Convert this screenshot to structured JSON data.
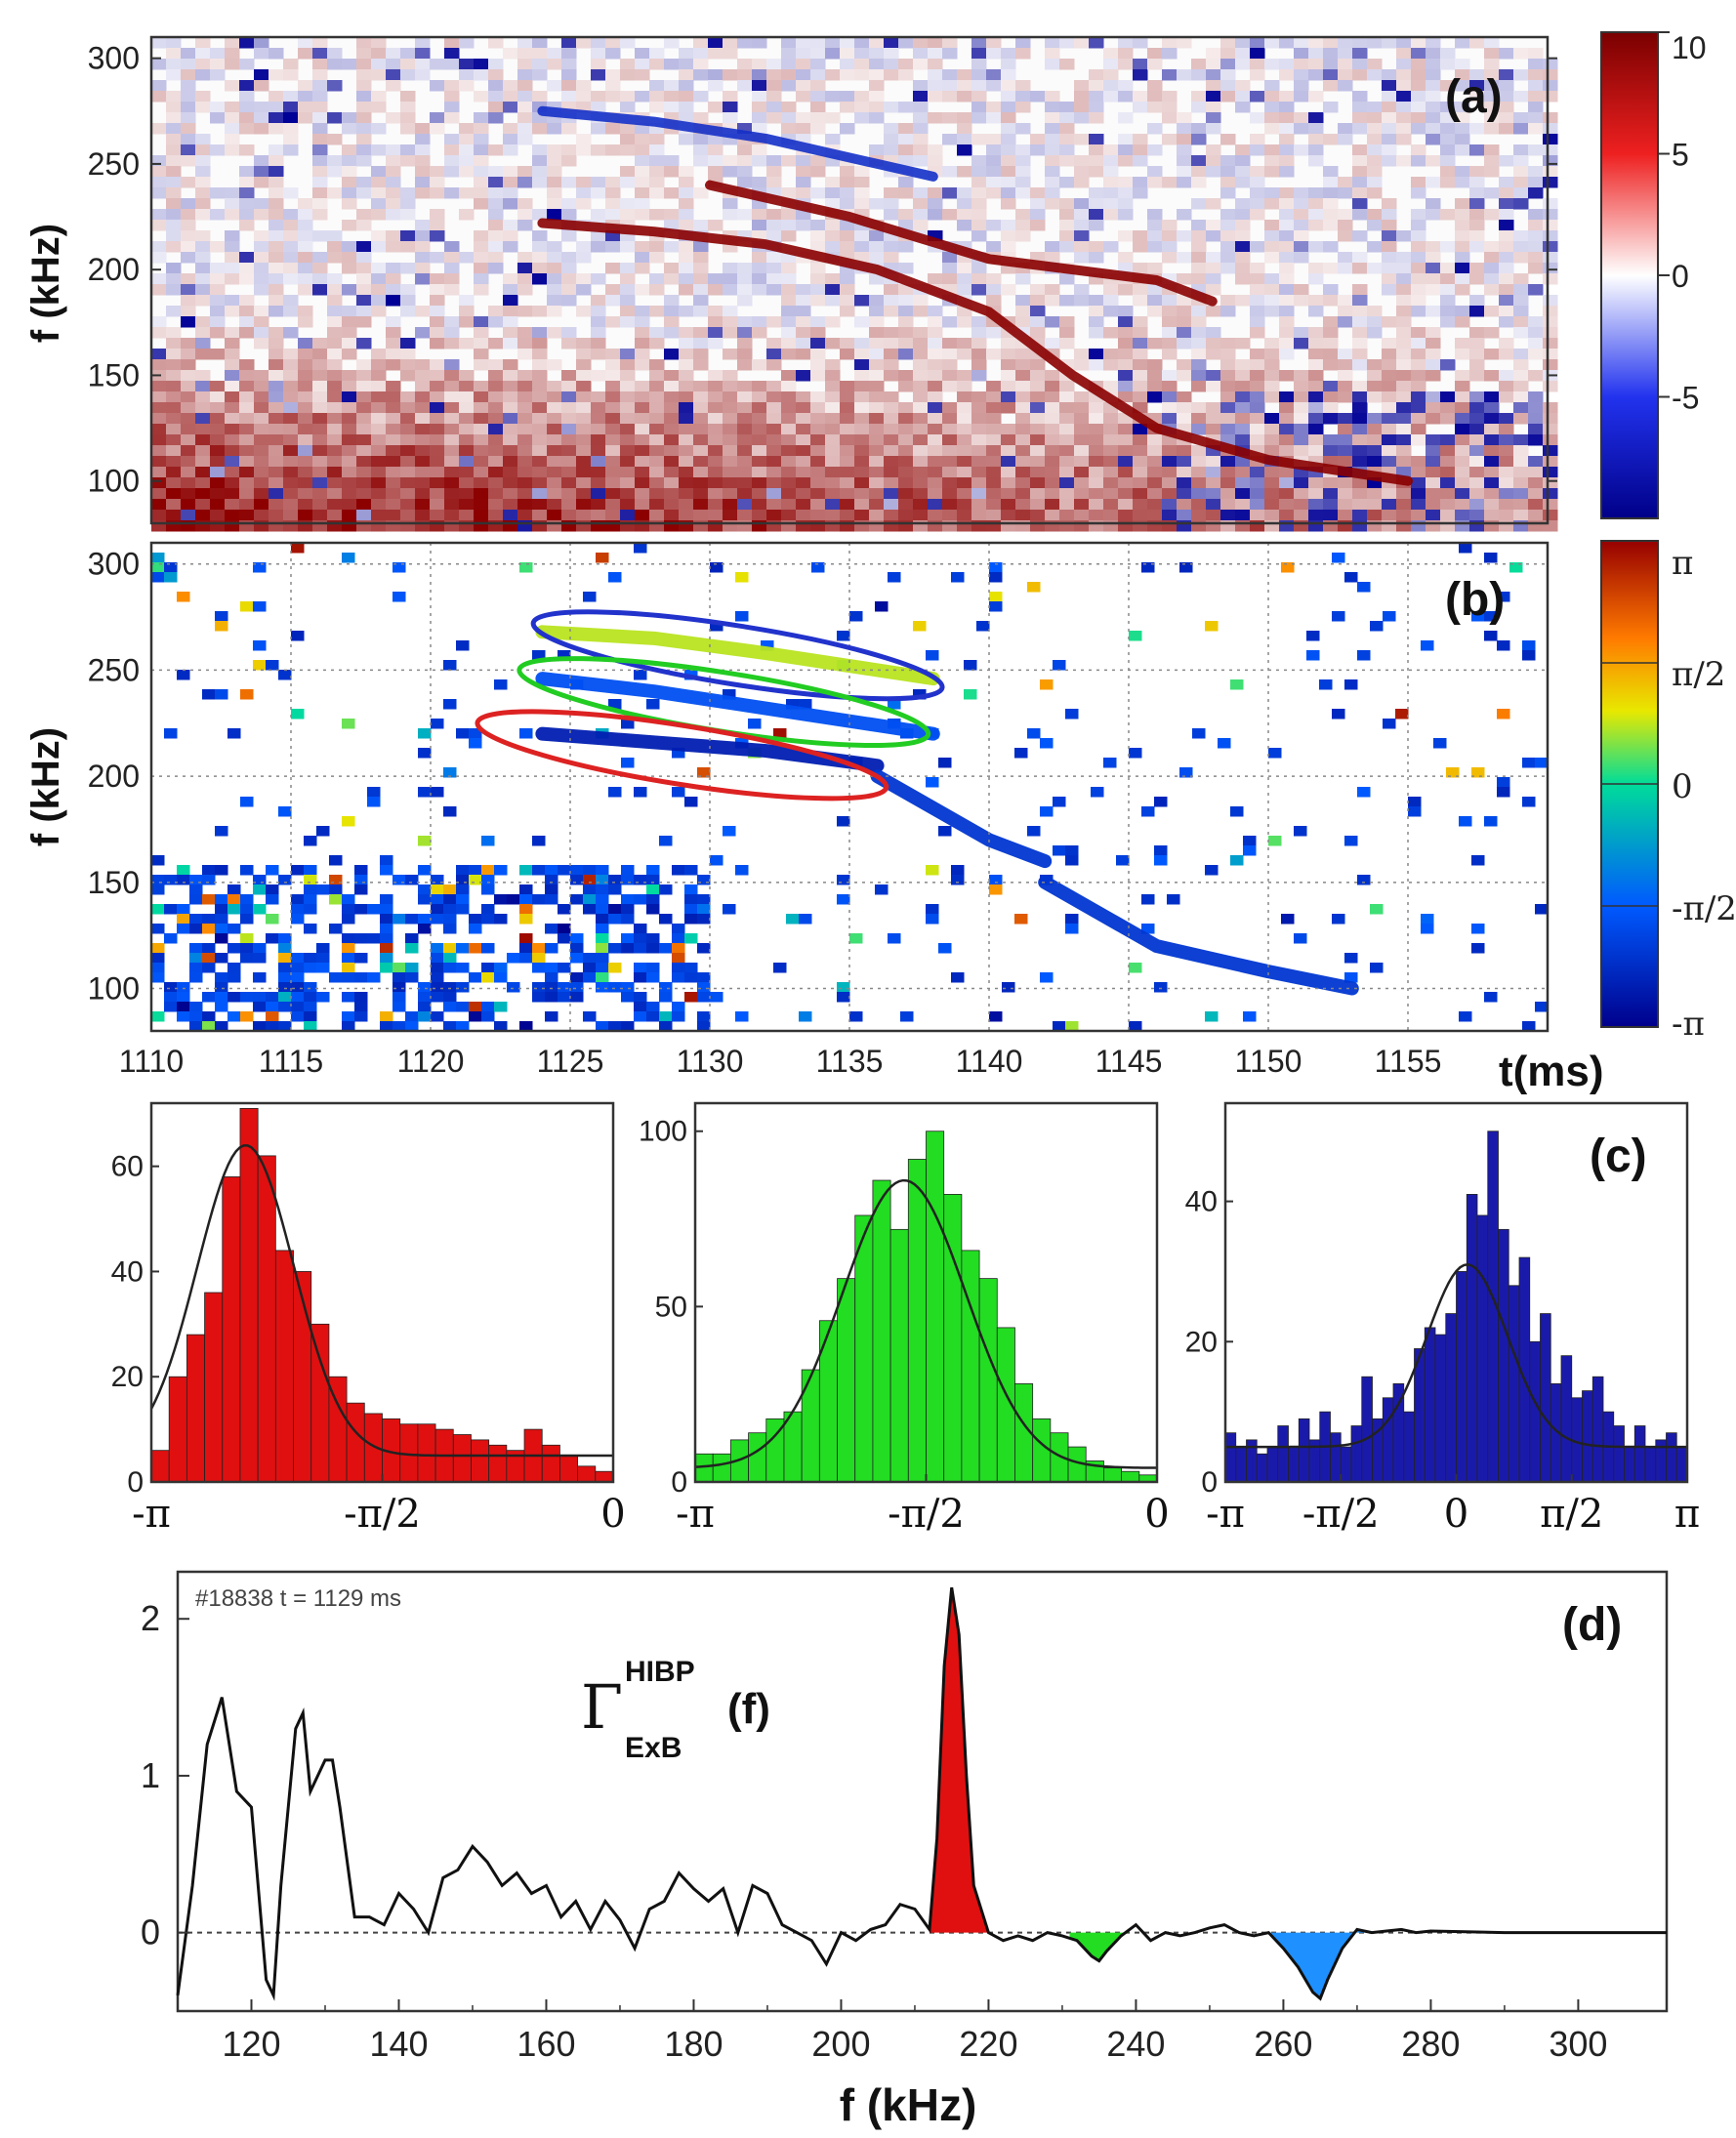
{
  "chart_data": [
    {
      "id": "a",
      "type": "heatmap",
      "panel_label": "(a)",
      "ylabel": "f (kHz)",
      "x_range": [
        1110,
        1160
      ],
      "y_range": [
        80,
        310
      ],
      "y_ticks": [
        "100",
        "150",
        "200",
        "250",
        "300"
      ],
      "colorbar": {
        "ticks": [
          "10",
          "5",
          "0",
          "-5"
        ],
        "range": [
          -10,
          10
        ]
      },
      "traces": [
        {
          "name": "upper blue branch",
          "sign": "negative",
          "x": [
            1124,
            1128,
            1132,
            1136,
            1138
          ],
          "y": [
            275,
            270,
            262,
            250,
            244
          ]
        },
        {
          "name": "main red branch",
          "sign": "positive",
          "x": [
            1124,
            1128,
            1132,
            1136,
            1140,
            1143,
            1146,
            1150,
            1155
          ],
          "y": [
            222,
            218,
            212,
            200,
            180,
            150,
            125,
            110,
            100
          ]
        },
        {
          "name": "upper red branch",
          "sign": "positive",
          "x": [
            1130,
            1135,
            1140,
            1146,
            1148
          ],
          "y": [
            240,
            225,
            205,
            195,
            185
          ]
        }
      ]
    },
    {
      "id": "b",
      "type": "heatmap",
      "panel_label": "(b)",
      "ylabel": "f (kHz)",
      "xlabel": "t(ms)",
      "x_range": [
        1110,
        1160
      ],
      "y_range": [
        80,
        310
      ],
      "x_ticks": [
        "1110",
        "1115",
        "1120",
        "1125",
        "1130",
        "1135",
        "1140",
        "1145",
        "1150",
        "1155"
      ],
      "y_ticks": [
        "100",
        "150",
        "200",
        "250",
        "300"
      ],
      "colorbar": {
        "ticks": [
          "π",
          "π/2",
          "0",
          "-π/2",
          "-π"
        ],
        "range": [
          -3.1416,
          3.1416
        ]
      },
      "highlight_regions": [
        {
          "color": "#2233cc",
          "center_t": 1131,
          "center_f": 257
        },
        {
          "color": "#22cc22",
          "center_t": 1130.5,
          "center_f": 235
        },
        {
          "color": "#dd2222",
          "center_t": 1129,
          "center_f": 210
        }
      ]
    },
    {
      "id": "c-red",
      "type": "bar",
      "panel_label": "",
      "xlabel_ticks": [
        "-π",
        "-π/2",
        "0"
      ],
      "x_range": [
        -3.1416,
        0
      ],
      "ylim": [
        0,
        72
      ],
      "y_ticks": [
        "0",
        "20",
        "40",
        "60"
      ],
      "color": "#e01010",
      "values": [
        6,
        20,
        28,
        36,
        58,
        71,
        62,
        44,
        40,
        30,
        20,
        15,
        13,
        12,
        11,
        11,
        10,
        9,
        8,
        7,
        6,
        10,
        7,
        5,
        3,
        2
      ],
      "fit": {
        "peak": 64,
        "center": -2.5,
        "width": 0.33,
        "baseline": 5
      }
    },
    {
      "id": "c-green",
      "type": "bar",
      "panel_label": "",
      "xlabel_ticks": [
        "-π",
        "-π/2",
        "0"
      ],
      "x_range": [
        -3.1416,
        0
      ],
      "ylim": [
        0,
        108
      ],
      "y_ticks": [
        "0",
        "50",
        "100"
      ],
      "color": "#22dd22",
      "values": [
        8,
        8,
        12,
        14,
        18,
        20,
        32,
        46,
        58,
        76,
        86,
        72,
        92,
        100,
        82,
        66,
        58,
        44,
        28,
        18,
        14,
        10,
        6,
        4,
        3,
        2
      ],
      "fit": {
        "peak": 86,
        "center": -1.72,
        "width": 0.42,
        "baseline": 4
      }
    },
    {
      "id": "c-blue",
      "type": "bar",
      "panel_label": "(c)",
      "xlabel_ticks": [
        "-π",
        "-π/2",
        "0",
        "π/2",
        "π"
      ],
      "x_range": [
        -3.1416,
        3.1416
      ],
      "ylim": [
        0,
        54
      ],
      "y_ticks": [
        "0",
        "20",
        "40"
      ],
      "color": "#1a1aaa",
      "values": [
        7,
        5,
        6,
        4,
        5,
        8,
        5,
        9,
        6,
        10,
        7,
        5,
        8,
        15,
        9,
        12,
        14,
        10,
        19,
        22,
        21,
        24,
        30,
        41,
        38,
        50,
        36,
        28,
        32,
        20,
        24,
        14,
        18,
        12,
        13,
        15,
        10,
        8,
        5,
        8,
        5,
        6,
        7,
        5
      ],
      "fit": {
        "peak": 31,
        "center": 0.15,
        "width": 0.55,
        "baseline": 5
      }
    },
    {
      "id": "d",
      "type": "line",
      "panel_label": "(d)",
      "annotation": "#18838  t = 1129 ms",
      "series_label": {
        "symbol": "Γ",
        "sup": "HIBP",
        "sub": "ExB",
        "arg": "(f)"
      },
      "xlabel": "f (kHz)",
      "x_range": [
        110,
        312
      ],
      "ylim": [
        -0.5,
        2.3
      ],
      "x_ticks": [
        "120",
        "140",
        "160",
        "180",
        "200",
        "220",
        "240",
        "260",
        "280",
        "300"
      ],
      "y_ticks": [
        "0",
        "1",
        "2"
      ],
      "x": [
        110,
        112,
        114,
        116,
        118,
        120,
        122,
        123,
        124,
        126,
        127,
        128,
        130,
        131,
        132,
        134,
        136,
        138,
        140,
        142,
        144,
        146,
        148,
        150,
        152,
        154,
        156,
        158,
        160,
        162,
        164,
        166,
        168,
        170,
        172,
        174,
        176,
        178,
        180,
        182,
        184,
        186,
        188,
        190,
        192,
        194,
        196,
        198,
        200,
        202,
        204,
        206,
        208,
        210,
        212,
        213,
        214,
        215,
        216,
        217,
        218,
        220,
        222,
        224,
        226,
        228,
        230,
        232,
        234,
        235,
        236,
        238,
        240,
        242,
        244,
        246,
        248,
        250,
        252,
        254,
        256,
        258,
        260,
        262,
        264,
        265,
        266,
        268,
        270,
        272,
        274,
        276,
        278,
        280,
        290,
        300,
        312
      ],
      "y": [
        -0.4,
        0.3,
        1.2,
        1.5,
        0.9,
        0.8,
        -0.3,
        -0.4,
        0.3,
        1.3,
        1.4,
        0.9,
        1.1,
        1.1,
        0.8,
        0.1,
        0.1,
        0.05,
        0.25,
        0.15,
        0.0,
        0.35,
        0.4,
        0.55,
        0.45,
        0.3,
        0.38,
        0.25,
        0.3,
        0.1,
        0.2,
        0.02,
        0.2,
        0.08,
        -0.1,
        0.15,
        0.2,
        0.38,
        0.28,
        0.2,
        0.28,
        0.0,
        0.3,
        0.25,
        0.05,
        0.0,
        -0.05,
        -0.2,
        0.0,
        -0.05,
        0.02,
        0.05,
        0.18,
        0.15,
        0.02,
        0.6,
        1.7,
        2.2,
        1.9,
        1.0,
        0.3,
        0.0,
        -0.05,
        -0.02,
        -0.05,
        0.0,
        -0.02,
        -0.05,
        -0.15,
        -0.18,
        -0.12,
        -0.02,
        0.05,
        -0.05,
        0.0,
        -0.02,
        0.0,
        0.03,
        0.05,
        0.0,
        -0.02,
        0.0,
        -0.1,
        -0.22,
        -0.38,
        -0.42,
        -0.3,
        -0.1,
        0.02,
        0.0,
        0.01,
        0.02,
        0.0,
        0.01,
        0.0,
        0.0,
        0.0
      ],
      "filled_peaks": [
        {
          "from": 212,
          "to": 220,
          "color": "#e01010"
        },
        {
          "from": 231,
          "to": 239,
          "color": "#22dd22"
        },
        {
          "from": 258,
          "to": 272,
          "color": "#1e90ff"
        }
      ]
    }
  ]
}
